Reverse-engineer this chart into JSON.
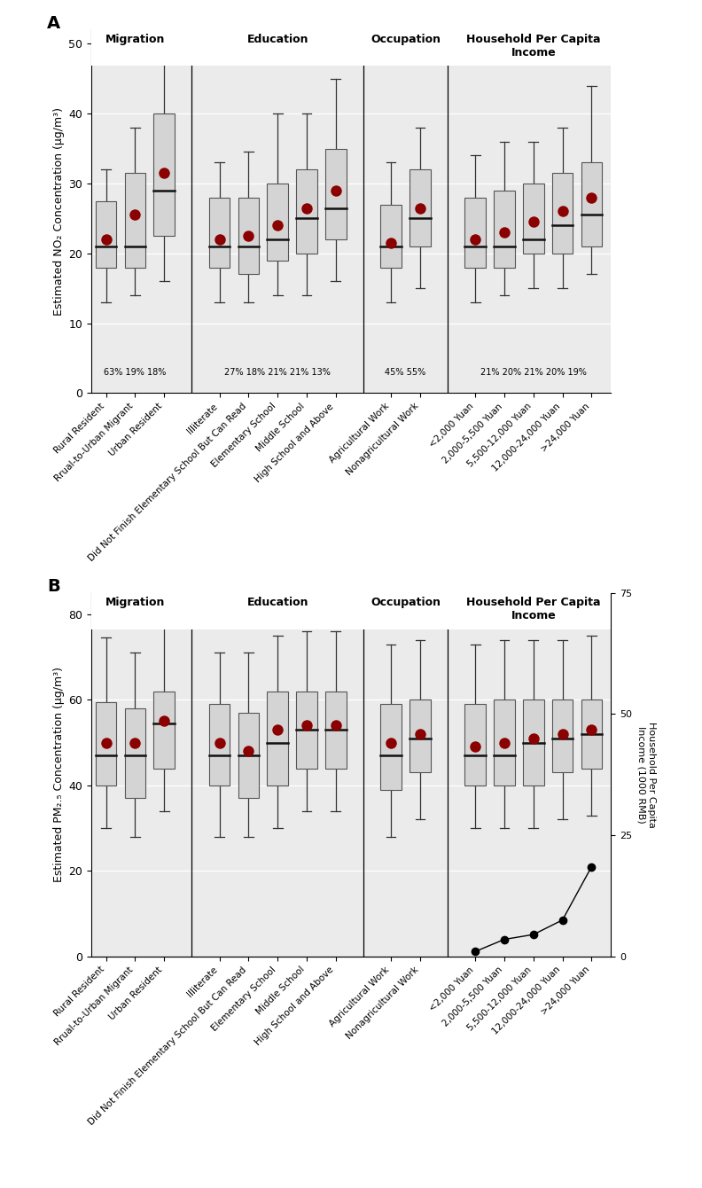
{
  "panel_A": {
    "ylabel": "Estimated NO₂ Concentration (μg/m³)",
    "ylim": [
      0,
      52
    ],
    "yticks": [
      0,
      10,
      20,
      30,
      40,
      50
    ],
    "groups": {
      "Migration": {
        "title": "Migration",
        "pct_label": "63% 19% 18%",
        "boxes": [
          {
            "label": "Rural Resident",
            "q1": 18.0,
            "median": 21.0,
            "q3": 27.5,
            "whislo": 13.0,
            "whishi": 32.0,
            "mean": 22.0
          },
          {
            "label": "Rrual-to-Urban Migrant",
            "q1": 18.0,
            "median": 21.0,
            "q3": 31.5,
            "whislo": 14.0,
            "whishi": 38.0,
            "mean": 25.5
          },
          {
            "label": "Urban Resident",
            "q1": 22.5,
            "median": 29.0,
            "q3": 40.0,
            "whislo": 16.0,
            "whishi": 50.5,
            "mean": 31.5
          }
        ]
      },
      "Education": {
        "title": "Education",
        "pct_label": "27% 18% 21% 21% 13%",
        "boxes": [
          {
            "label": "Illiterate",
            "q1": 18.0,
            "median": 21.0,
            "q3": 28.0,
            "whislo": 13.0,
            "whishi": 33.0,
            "mean": 22.0
          },
          {
            "label": "Can Read",
            "q1": 17.0,
            "median": 21.0,
            "q3": 28.0,
            "whislo": 13.0,
            "whishi": 34.5,
            "mean": 22.5
          },
          {
            "label": "Elementary School",
            "q1": 19.0,
            "median": 22.0,
            "q3": 30.0,
            "whislo": 14.0,
            "whishi": 40.0,
            "mean": 24.0
          },
          {
            "label": "Middle School",
            "q1": 20.0,
            "median": 25.0,
            "q3": 32.0,
            "whislo": 14.0,
            "whishi": 40.0,
            "mean": 26.5
          },
          {
            "label": "High School and Above",
            "q1": 22.0,
            "median": 26.5,
            "q3": 35.0,
            "whislo": 16.0,
            "whishi": 45.0,
            "mean": 29.0
          }
        ]
      },
      "Occupation": {
        "title": "Occupation",
        "pct_label": "45% 55%",
        "boxes": [
          {
            "label": "Agricultural Work",
            "q1": 18.0,
            "median": 21.0,
            "q3": 27.0,
            "whislo": 13.0,
            "whishi": 33.0,
            "mean": 21.5
          },
          {
            "label": "Nonagricultural Work",
            "q1": 21.0,
            "median": 25.0,
            "q3": 32.0,
            "whislo": 15.0,
            "whishi": 38.0,
            "mean": 26.5
          }
        ]
      },
      "Income": {
        "title": "Household Per Capita\nIncome",
        "pct_label": "21% 20% 21% 20% 19%",
        "boxes": [
          {
            "label": "<2,000 Yuan",
            "q1": 18.0,
            "median": 21.0,
            "q3": 28.0,
            "whislo": 13.0,
            "whishi": 34.0,
            "mean": 22.0
          },
          {
            "label": "2,000-5,500 Yuan",
            "q1": 18.0,
            "median": 21.0,
            "q3": 29.0,
            "whislo": 14.0,
            "whishi": 36.0,
            "mean": 23.0
          },
          {
            "label": "5,500-12,000 Yuan",
            "q1": 20.0,
            "median": 22.0,
            "q3": 30.0,
            "whislo": 15.0,
            "whishi": 36.0,
            "mean": 24.5
          },
          {
            "label": "12,000-24,000 Yuan",
            "q1": 20.0,
            "median": 24.0,
            "q3": 31.5,
            "whislo": 15.0,
            "whishi": 38.0,
            "mean": 26.0
          },
          {
            "label": ">24,000 Yuan",
            "q1": 21.0,
            "median": 25.5,
            "q3": 33.0,
            "whislo": 17.0,
            "whishi": 44.0,
            "mean": 28.0
          }
        ]
      }
    }
  },
  "panel_B": {
    "ylabel": "Estimated PM₂.₅ Concentration (μg/m³)",
    "ylim": [
      0,
      85
    ],
    "yticks": [
      0,
      20,
      40,
      60,
      80
    ],
    "groups": {
      "Migration": {
        "title": "Migration",
        "boxes": [
          {
            "label": "Rural Resident",
            "q1": 40.0,
            "median": 47.0,
            "q3": 59.5,
            "whislo": 30.0,
            "whishi": 74.5,
            "mean": 50.0
          },
          {
            "label": "Rrual-to-Urban Migrant",
            "q1": 37.0,
            "median": 47.0,
            "q3": 58.0,
            "whislo": 28.0,
            "whishi": 71.0,
            "mean": 50.0
          },
          {
            "label": "Urban Resident",
            "q1": 44.0,
            "median": 54.5,
            "q3": 62.0,
            "whislo": 34.0,
            "whishi": 81.0,
            "mean": 55.0
          }
        ]
      },
      "Education": {
        "title": "Education",
        "boxes": [
          {
            "label": "Illiterate",
            "q1": 40.0,
            "median": 47.0,
            "q3": 59.0,
            "whislo": 28.0,
            "whishi": 71.0,
            "mean": 50.0
          },
          {
            "label": "Can Read",
            "q1": 37.0,
            "median": 47.0,
            "q3": 57.0,
            "whislo": 28.0,
            "whishi": 71.0,
            "mean": 48.0
          },
          {
            "label": "Elementary School",
            "q1": 40.0,
            "median": 50.0,
            "q3": 62.0,
            "whislo": 30.0,
            "whishi": 75.0,
            "mean": 53.0
          },
          {
            "label": "Middle School",
            "q1": 44.0,
            "median": 53.0,
            "q3": 62.0,
            "whislo": 34.0,
            "whishi": 76.0,
            "mean": 54.0
          },
          {
            "label": "High School and Above",
            "q1": 44.0,
            "median": 53.0,
            "q3": 62.0,
            "whislo": 34.0,
            "whishi": 76.0,
            "mean": 54.0
          }
        ]
      },
      "Occupation": {
        "title": "Occupation",
        "boxes": [
          {
            "label": "Agricultural Work",
            "q1": 39.0,
            "median": 47.0,
            "q3": 59.0,
            "whislo": 28.0,
            "whishi": 73.0,
            "mean": 50.0
          },
          {
            "label": "Nonagricultural Work",
            "q1": 43.0,
            "median": 51.0,
            "q3": 60.0,
            "whislo": 32.0,
            "whishi": 74.0,
            "mean": 52.0
          }
        ]
      },
      "Income": {
        "title": "Household Per Capita\nIncome",
        "boxes": [
          {
            "label": "<2,000 Yuan",
            "q1": 40.0,
            "median": 47.0,
            "q3": 59.0,
            "whislo": 30.0,
            "whishi": 73.0,
            "mean": 49.0
          },
          {
            "label": "2,000-5,500 Yuan",
            "q1": 40.0,
            "median": 47.0,
            "q3": 60.0,
            "whislo": 30.0,
            "whishi": 74.0,
            "mean": 50.0
          },
          {
            "label": "5,500-12,000 Yuan",
            "q1": 40.0,
            "median": 50.0,
            "q3": 60.0,
            "whislo": 30.0,
            "whishi": 74.0,
            "mean": 51.0
          },
          {
            "label": "12,000-24,000 Yuan",
            "q1": 43.0,
            "median": 51.0,
            "q3": 60.0,
            "whislo": 32.0,
            "whishi": 74.0,
            "mean": 52.0
          },
          {
            "label": ">24,000 Yuan",
            "q1": 44.0,
            "median": 52.0,
            "q3": 60.0,
            "whislo": 33.0,
            "whishi": 75.0,
            "mean": 53.0
          }
        ]
      }
    },
    "income_line": {
      "y_values": [
        1.0,
        3.5,
        4.5,
        7.5,
        18.5
      ],
      "income_ylabel": "Household Per Capita\nIncome (1000 RMB)",
      "income_yticks": [
        0,
        25,
        50,
        75
      ],
      "income_ylim": [
        0,
        75
      ]
    }
  },
  "xtick_labels_A": {
    "Migration": [
      "Rural Resident",
      "Rrual-to-Urban Migrant",
      "Urban Resident"
    ],
    "Education": [
      "Illiterate",
      "Did Not Finish Elementary School But Can Read",
      "Elementary School",
      "Middle School",
      "High School and Above"
    ],
    "Occupation": [
      "Agricultural Work",
      "Nonagricultural Work"
    ],
    "Income": [
      "<2,000 Yuan",
      "2,000-5,500 Yuan",
      "5,500-12,000 Yuan",
      "12,000-24,000 Yuan",
      ">24,000 Yuan"
    ]
  },
  "xtick_labels_B": {
    "Migration": [
      "Rural Resident",
      "Rrual-to-Urban Migrant",
      "Urban Resident"
    ],
    "Education": [
      "Illiterate",
      "But Can Read",
      "Elementary School",
      "Middle School",
      "High School and Above"
    ],
    "Occupation": [
      "Agricultural Work",
      "Nonagricultural Work"
    ],
    "Income": [
      "<2,000 Yuan",
      "2,000-5,500 Yuan",
      "5,500-12,000\nYuan",
      "12,000-24,000 Yuan",
      ">24,000 Yuan"
    ]
  },
  "box_color": "#d4d4d4",
  "box_edge_color": "#555555",
  "mean_dot_color": "#8b0000",
  "median_color": "#111111",
  "whisker_color": "#333333",
  "panel_bg": "#ebebeb",
  "grid_color": "#ffffff",
  "background_color": "#ffffff",
  "group_order": [
    "Migration",
    "Education",
    "Occupation",
    "Income"
  ]
}
